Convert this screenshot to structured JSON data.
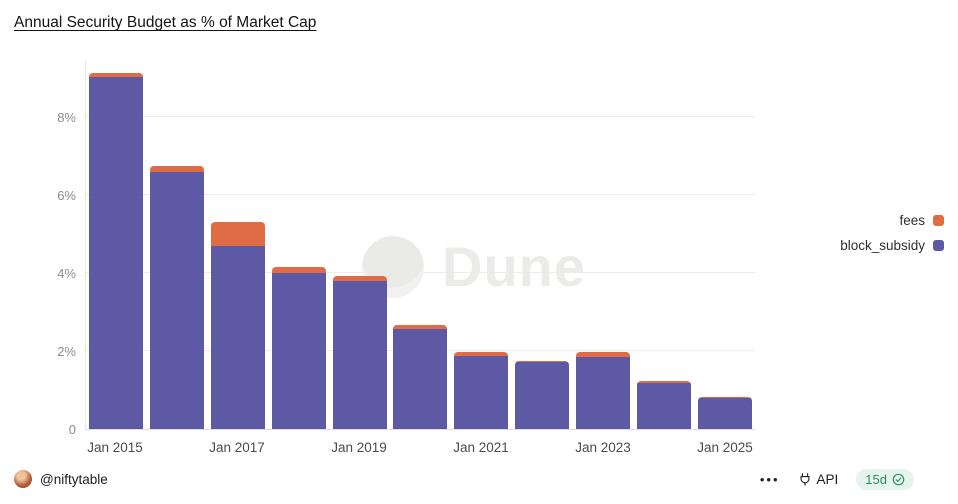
{
  "header": {
    "title": "Annual Security Budget as % of Market Cap"
  },
  "chart_data": {
    "type": "bar",
    "stacked": true,
    "title": "Annual Security Budget as % of Market Cap",
    "categories": [
      "2015",
      "2016",
      "2017",
      "2018",
      "2019",
      "2020",
      "2021",
      "2022",
      "2023",
      "2024",
      "2025"
    ],
    "series": [
      {
        "name": "block_subsidy",
        "color": "#5e59a5",
        "values": [
          9.05,
          6.6,
          4.7,
          4.0,
          3.8,
          2.56,
          1.87,
          1.72,
          1.84,
          1.19,
          0.8
        ]
      },
      {
        "name": "fees",
        "color": "#df6c44",
        "values": [
          0.1,
          0.15,
          0.62,
          0.15,
          0.12,
          0.12,
          0.1,
          0.03,
          0.13,
          0.04,
          0.02
        ]
      }
    ],
    "ylim": [
      0,
      9.5
    ],
    "yticks": [
      0,
      2,
      4,
      6,
      8
    ],
    "ytick_labels": [
      "0",
      "2%",
      "4%",
      "6%",
      "8%"
    ],
    "x_tick_positions": [
      0,
      2,
      4,
      6,
      8,
      10
    ],
    "x_tick_labels": [
      "Jan 2015",
      "Jan 2017",
      "Jan 2019",
      "Jan 2021",
      "Jan 2023",
      "Jan 2025"
    ],
    "grid": true,
    "legend_position": "right",
    "watermark": "Dune"
  },
  "legend": {
    "items": [
      {
        "label": "fees",
        "color": "#df6c44"
      },
      {
        "label": "block_subsidy",
        "color": "#5e59a5"
      }
    ]
  },
  "watermark": {
    "text": "Dune"
  },
  "footer": {
    "username": "@niftytable",
    "more_label": "•••",
    "api_label": "API",
    "freshness": "15d",
    "badge_bg": "#e7f4ec",
    "badge_color": "#27935f"
  }
}
